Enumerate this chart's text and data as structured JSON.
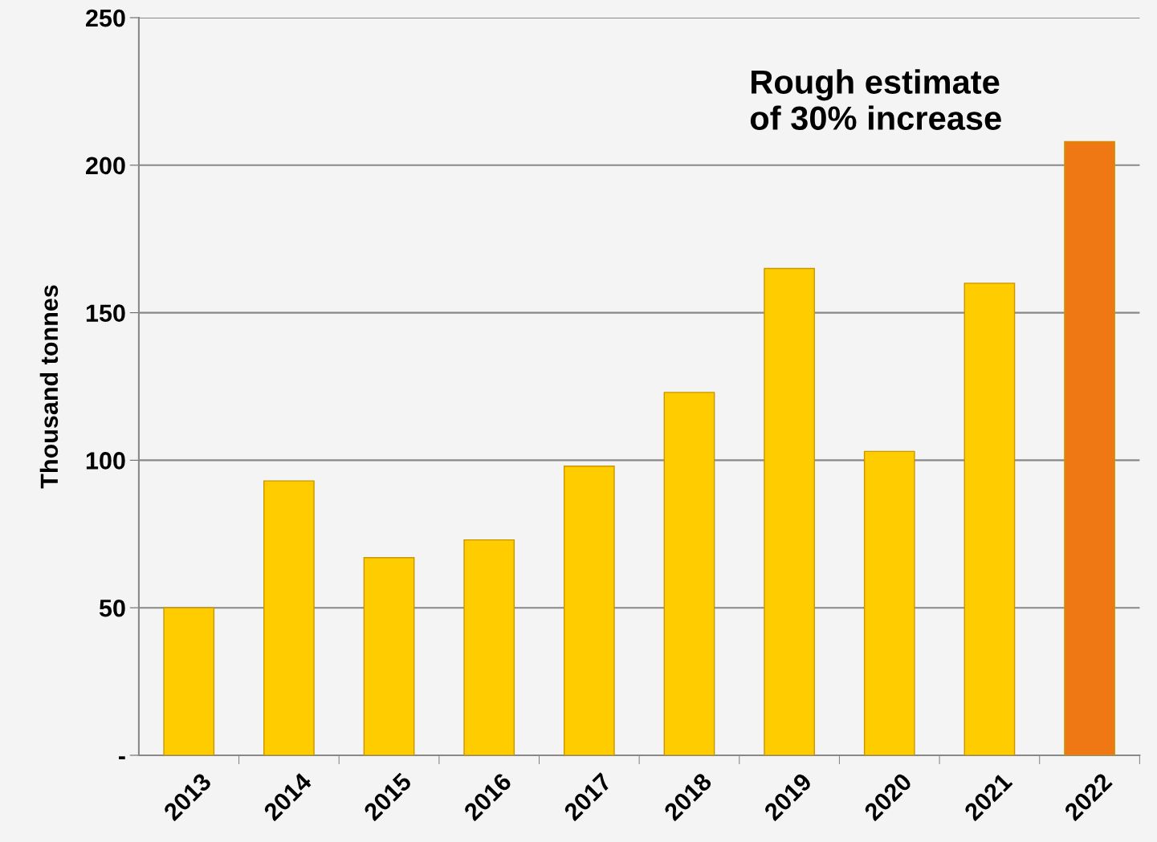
{
  "chart_data": {
    "type": "bar",
    "ylabel": "Thousand tonnes",
    "categories": [
      "2013",
      "2014",
      "2015",
      "2016",
      "2017",
      "2018",
      "2019",
      "2020",
      "2021",
      "2022"
    ],
    "values": [
      50,
      93,
      67,
      73,
      98,
      123,
      165,
      103,
      160,
      208
    ],
    "colors": [
      "#ffcc00",
      "#ffcc00",
      "#ffcc00",
      "#ffcc00",
      "#ffcc00",
      "#ffcc00",
      "#ffcc00",
      "#ffcc00",
      "#ffcc00",
      "#f07814"
    ],
    "ylim": [
      0,
      250
    ],
    "yticks": [
      {
        "value": 0,
        "label": "-"
      },
      50,
      100,
      150,
      200,
      250
    ],
    "grid": "y",
    "annotations": [
      "Rough estimate\nof 30% increase"
    ]
  }
}
